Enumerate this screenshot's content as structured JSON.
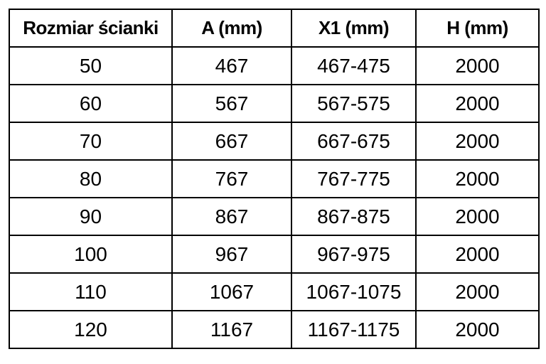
{
  "colors": {
    "background": "#ffffff",
    "border": "#000000",
    "text": "#000000"
  },
  "table": {
    "headers": [
      "Rozmiar ścianki",
      "A (mm)",
      "X1 (mm)",
      "H (mm)"
    ],
    "rows": [
      [
        "50",
        "467",
        "467-475",
        "2000"
      ],
      [
        "60",
        "567",
        "567-575",
        "2000"
      ],
      [
        "70",
        "667",
        "667-675",
        "2000"
      ],
      [
        "80",
        "767",
        "767-775",
        "2000"
      ],
      [
        "90",
        "867",
        "867-875",
        "2000"
      ],
      [
        "100",
        "967",
        "967-975",
        "2000"
      ],
      [
        "110",
        "1067",
        "1067-1075",
        "2000"
      ],
      [
        "120",
        "1167",
        "1167-1175",
        "2000"
      ]
    ]
  }
}
